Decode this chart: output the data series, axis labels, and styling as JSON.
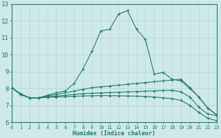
{
  "xlabel": "Humidex (Indice chaleur)",
  "ylabel": "",
  "xlim": [
    0,
    23
  ],
  "ylim": [
    6,
    13
  ],
  "yticks": [
    6,
    7,
    8,
    9,
    10,
    11,
    12,
    13
  ],
  "xticks": [
    0,
    1,
    2,
    3,
    4,
    5,
    6,
    7,
    8,
    9,
    10,
    11,
    12,
    13,
    14,
    15,
    16,
    17,
    18,
    19,
    20,
    21,
    22,
    23
  ],
  "bg_color": "#cfe9e8",
  "grid_color": "#b8d8d6",
  "line_color": "#1a7a6e",
  "series": [
    {
      "x": [
        0,
        1,
        2,
        3,
        4,
        5,
        6,
        7,
        8,
        9,
        10,
        11,
        12,
        13,
        14,
        15,
        16,
        17,
        18,
        19,
        20,
        21,
        22,
        23
      ],
      "y": [
        8.05,
        7.7,
        7.45,
        7.45,
        7.6,
        7.75,
        7.85,
        8.3,
        9.15,
        10.2,
        11.4,
        11.5,
        12.4,
        12.6,
        11.5,
        10.9,
        8.85,
        8.95,
        8.55,
        8.45,
        8.0,
        7.5,
        6.85,
        6.45
      ]
    },
    {
      "x": [
        0,
        1,
        2,
        3,
        4,
        5,
        6,
        7,
        8,
        9,
        10,
        11,
        12,
        13,
        14,
        15,
        16,
        17,
        18,
        19,
        20,
        21,
        22,
        23
      ],
      "y": [
        8.05,
        7.65,
        7.45,
        7.45,
        7.55,
        7.65,
        7.75,
        7.85,
        7.95,
        8.05,
        8.1,
        8.15,
        8.2,
        8.25,
        8.3,
        8.35,
        8.4,
        8.45,
        8.5,
        8.55,
        8.05,
        7.5,
        6.85,
        6.45
      ]
    },
    {
      "x": [
        0,
        1,
        2,
        3,
        4,
        5,
        6,
        7,
        8,
        9,
        10,
        11,
        12,
        13,
        14,
        15,
        16,
        17,
        18,
        19,
        20,
        21,
        22,
        23
      ],
      "y": [
        8.05,
        7.65,
        7.45,
        7.45,
        7.5,
        7.55,
        7.6,
        7.65,
        7.7,
        7.72,
        7.74,
        7.76,
        7.78,
        7.8,
        7.82,
        7.84,
        7.86,
        7.88,
        7.9,
        7.8,
        7.5,
        6.9,
        6.5,
        6.4
      ]
    },
    {
      "x": [
        0,
        1,
        2,
        3,
        4,
        5,
        6,
        7,
        8,
        9,
        10,
        11,
        12,
        13,
        14,
        15,
        16,
        17,
        18,
        19,
        20,
        21,
        22,
        23
      ],
      "y": [
        8.05,
        7.65,
        7.45,
        7.45,
        7.48,
        7.5,
        7.52,
        7.54,
        7.56,
        7.57,
        7.58,
        7.58,
        7.57,
        7.56,
        7.55,
        7.53,
        7.5,
        7.45,
        7.4,
        7.3,
        7.0,
        6.6,
        6.25,
        6.1
      ]
    }
  ]
}
